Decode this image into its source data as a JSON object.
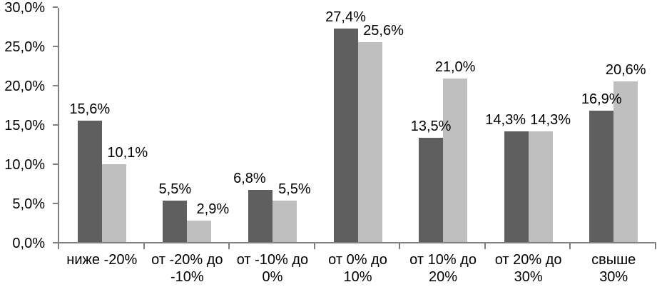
{
  "chart_data": {
    "type": "bar",
    "title": "",
    "xlabel": "",
    "ylabel": "",
    "grid": false,
    "legend": "none",
    "ylim": [
      0,
      30
    ],
    "y_ticks": [
      0,
      5,
      10,
      15,
      20,
      25,
      30
    ],
    "y_tick_labels": [
      "0,0%",
      "5,0%",
      "10,0%",
      "15,0%",
      "20,0%",
      "25,0%",
      "30,0%"
    ],
    "categories": [
      "ниже -20%",
      "от -20% до -10%",
      "от -10% до 0%",
      "от 0% до 10%",
      "от 10% до 20%",
      "от 20% до 30%",
      "свыше 30%"
    ],
    "category_label_lines": [
      [
        "ниже -20%"
      ],
      [
        "от -20% до",
        "-10%"
      ],
      [
        "от -10% до",
        "0%"
      ],
      [
        "от 0% до",
        "10%"
      ],
      [
        "от 10% до",
        "20%"
      ],
      [
        "от 20% до",
        "30%"
      ],
      [
        "свыше",
        "30%"
      ]
    ],
    "series": [
      {
        "name": "series-1",
        "color": "#5f5f5f",
        "values": [
          15.6,
          5.5,
          6.8,
          27.4,
          13.5,
          14.3,
          16.9
        ],
        "labels": [
          "15,6%",
          "5,5%",
          "6,8%",
          "27,4%",
          "13,5%",
          "14,3%",
          "16,9%"
        ]
      },
      {
        "name": "series-2",
        "color": "#bfbfbf",
        "values": [
          10.1,
          2.9,
          5.5,
          25.6,
          21.0,
          14.3,
          20.6
        ],
        "labels": [
          "10,1%",
          "2,9%",
          "5,5%",
          "25,6%",
          "21,0%",
          "14,3%",
          "20,6%"
        ]
      }
    ]
  },
  "colors": {
    "axis": "#808080",
    "text": "#000000",
    "background": "#ffffff"
  }
}
